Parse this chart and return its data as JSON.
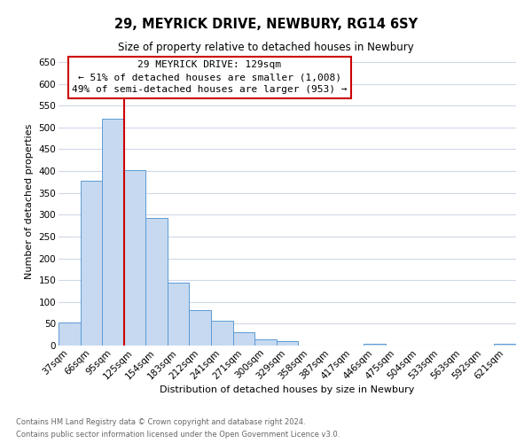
{
  "title": "29, MEYRICK DRIVE, NEWBURY, RG14 6SY",
  "subtitle": "Size of property relative to detached houses in Newbury",
  "xlabel": "Distribution of detached houses by size in Newbury",
  "ylabel": "Number of detached properties",
  "bar_labels": [
    "37sqm",
    "66sqm",
    "95sqm",
    "125sqm",
    "154sqm",
    "183sqm",
    "212sqm",
    "241sqm",
    "271sqm",
    "300sqm",
    "329sqm",
    "358sqm",
    "387sqm",
    "417sqm",
    "446sqm",
    "475sqm",
    "504sqm",
    "533sqm",
    "563sqm",
    "592sqm",
    "621sqm"
  ],
  "bar_values": [
    52,
    378,
    519,
    403,
    293,
    145,
    82,
    56,
    30,
    14,
    10,
    0,
    0,
    0,
    4,
    0,
    0,
    0,
    0,
    0,
    4
  ],
  "bar_color": "#c6d9f0",
  "bar_edge_color": "#5b9bd5",
  "vline_color": "#cc0000",
  "vline_position": 3.5,
  "annotation_title": "29 MEYRICK DRIVE: 129sqm",
  "annotation_line1": "← 51% of detached houses are smaller (1,008)",
  "annotation_line2": "49% of semi-detached houses are larger (953) →",
  "annotation_box_edge": "#cc0000",
  "ylim": [
    0,
    660
  ],
  "yticks": [
    0,
    50,
    100,
    150,
    200,
    250,
    300,
    350,
    400,
    450,
    500,
    550,
    600,
    650
  ],
  "footnote1": "Contains HM Land Registry data © Crown copyright and database right 2024.",
  "footnote2": "Contains public sector information licensed under the Open Government Licence v3.0.",
  "background_color": "#ffffff",
  "grid_color": "#d0d8e8",
  "title_fontsize": 10.5,
  "subtitle_fontsize": 8.5,
  "xlabel_fontsize": 8,
  "ylabel_fontsize": 8,
  "tick_fontsize": 7.5,
  "annotation_fontsize": 8,
  "footnote_fontsize": 6,
  "footnote_color": "#666666"
}
